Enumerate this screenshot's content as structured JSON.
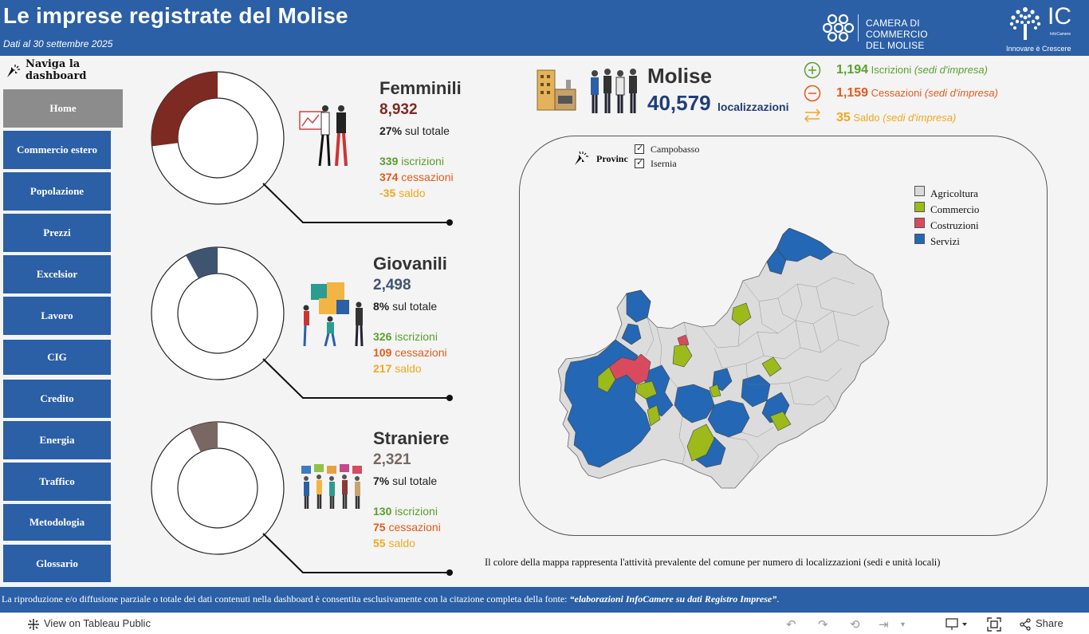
{
  "header": {
    "title": "Le imprese registrate del Molise",
    "subtitle": "Dati al 30 settembre 2025",
    "logo_camera": "CAMERA DI COMMERCIO",
    "logo_camera_2": "DEL MOLISE",
    "logo_ic": "IC",
    "logo_ic_sub": "InfoCamere",
    "logo_ic_tagline": "Innovare è Crescere"
  },
  "nav": {
    "hint": "Naviga  la",
    "hint_2": "dashboard",
    "items": [
      "Home",
      "Commercio  estero",
      "Popolazione",
      "Prezzi",
      "Excelsior",
      "Lavoro",
      "CIG",
      "Credito",
      "Energia",
      "Traffico",
      "Metodologia",
      "Glossario"
    ]
  },
  "sections": [
    {
      "title": "Femminili",
      "value": "8,932",
      "pct": "27%",
      "pct_label": " sul totale",
      "share": 0.27,
      "color": "#7d2a22",
      "iscr": "339",
      "iscr_label": " iscrizioni",
      "cess": "374",
      "cess_label": " cessazioni",
      "saldo": "-35",
      "saldo_label": " saldo"
    },
    {
      "title": "Giovanili",
      "value": "2,498",
      "pct": "8%",
      "pct_label": " sul totale",
      "share": 0.08,
      "color": "#3f5470",
      "iscr": "326",
      "iscr_label": " iscrizioni",
      "cess": "109",
      "cess_label": " cessazioni",
      "saldo": "217",
      "saldo_label": " saldo"
    },
    {
      "title": "Straniere",
      "value": "2,321",
      "pct": "7%",
      "pct_label": " sul totale",
      "share": 0.07,
      "color": "#7a6662",
      "iscr": "130",
      "iscr_label": " iscrizioni",
      "cess": "75",
      "cess_label": " cessazioni",
      "saldo": "55",
      "saldo_label": " saldo"
    }
  ],
  "molise": {
    "title": "Molise",
    "value": "40,579",
    "unit": "localizzazioni",
    "iscr": "1,194",
    "iscr_label": " Iscrizioni ",
    "iscr_note": "(sedi d'impresa)",
    "cess": "1,159",
    "cess_label": " Cessazioni ",
    "cess_note": "(sedi d'impresa)",
    "saldo": "35",
    "saldo_label": " Saldo ",
    "saldo_note": "(sedi d'impresa)"
  },
  "map": {
    "filter_label": "Provinc",
    "provinces": [
      "Campobasso",
      "Isernia"
    ],
    "legend": [
      {
        "label": "Agricoltura",
        "color": "#d9d9d9"
      },
      {
        "label": "Commercio",
        "color": "#9cba1a"
      },
      {
        "label": "Costruzioni",
        "color": "#d94a5e"
      },
      {
        "label": "Servizi",
        "color": "#2467b4"
      }
    ],
    "caption": "Il colore della mappa rappresenta l'attività prevalente del comune per numero di localizzazioni (sedi e unità locali)"
  },
  "footer": {
    "text": "La riproduzione e/o diffusione parziale o totale dei dati contenuti nella dashboard è consentita esclusivamente con la citazione completa della fonte: ",
    "source": "“elaborazioni InfoCamere su dati Registro Imprese”",
    "end": "."
  },
  "toolbar": {
    "view": "View on Tableau Public",
    "share": "Share"
  }
}
